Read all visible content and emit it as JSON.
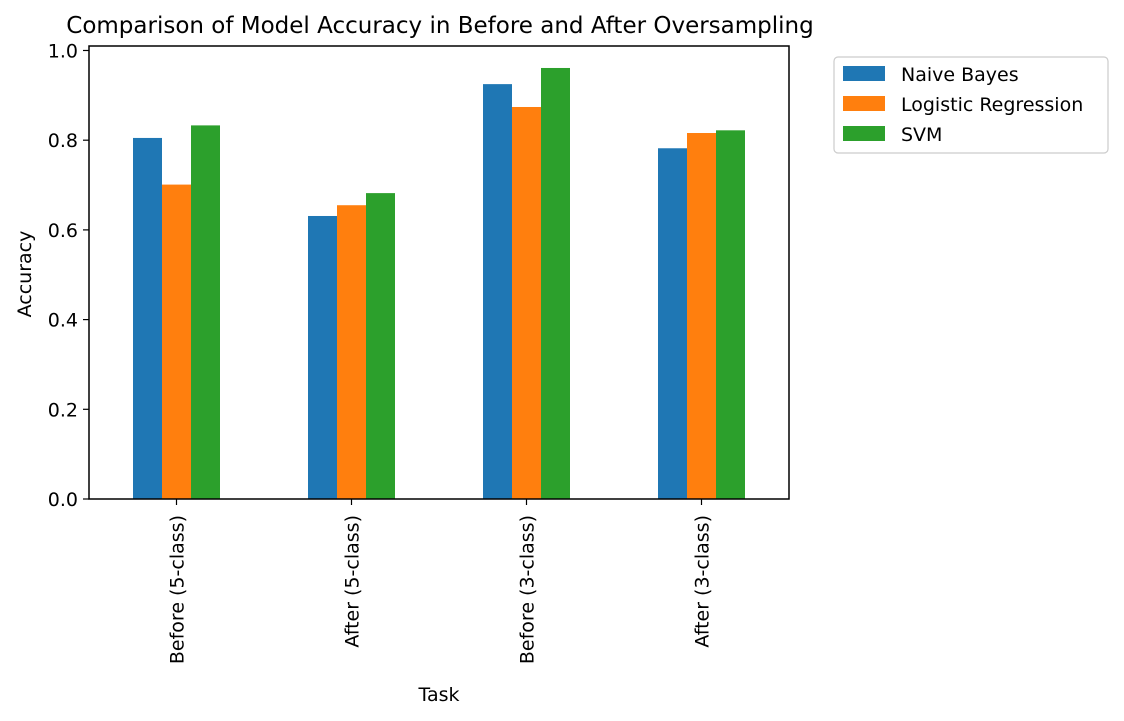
{
  "chart_data": {
    "type": "bar",
    "title": "Comparison of Model Accuracy in Before and After Oversampling",
    "xlabel": "Task",
    "ylabel": "Accuracy",
    "categories": [
      "Before (5-class)",
      "After (5-class)",
      "Before (3-class)",
      "After (3-class)"
    ],
    "series": [
      {
        "name": "Naive Bayes",
        "color": "#1f77b4",
        "values": [
          0.805,
          0.631,
          0.925,
          0.782
        ]
      },
      {
        "name": "Logistic Regression",
        "color": "#ff7f0e",
        "values": [
          0.701,
          0.655,
          0.874,
          0.816
        ]
      },
      {
        "name": "SVM",
        "color": "#2ca02c",
        "values": [
          0.833,
          0.682,
          0.961,
          0.822
        ]
      }
    ],
    "ylim": [
      0,
      1.01
    ],
    "yticks": [
      "0.0",
      "0.2",
      "0.4",
      "0.6",
      "0.8",
      "1.0"
    ],
    "ytick_values": [
      0,
      0.2,
      0.4,
      0.6,
      0.8,
      1.0
    ],
    "grid": false,
    "legend_position": "outside-top-right"
  }
}
